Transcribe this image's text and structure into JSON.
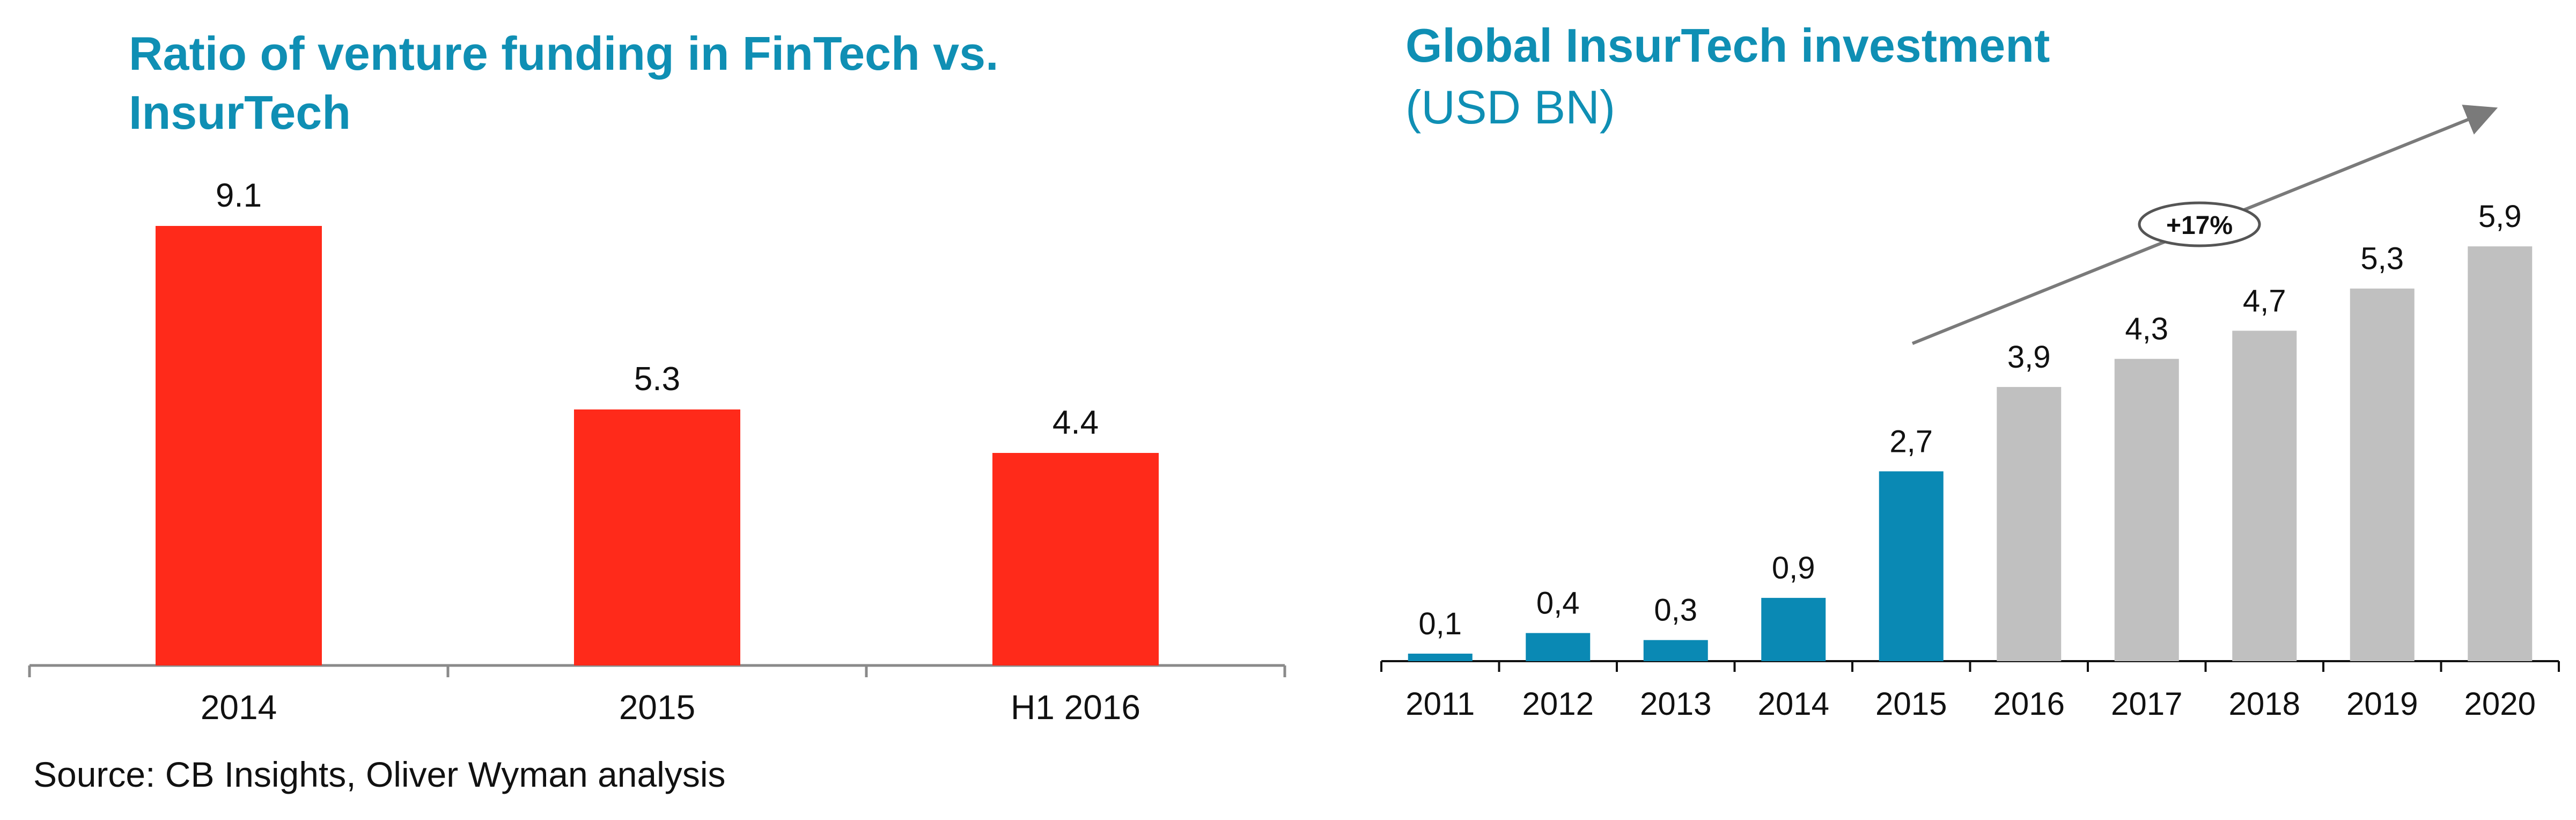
{
  "source_note": "Source: CB Insights, Oliver Wyman analysis",
  "chart_data": [
    {
      "type": "bar",
      "title": "Ratio of venture funding in FinTech vs. InsurTech",
      "categories": [
        "2014",
        "2015",
        "H1 2016"
      ],
      "values": [
        9.1,
        5.3,
        4.4
      ],
      "value_labels": [
        "9.1",
        "5.3",
        "4.4"
      ],
      "ylim": [
        0,
        10
      ],
      "bar_color": "#ff2a1a",
      "grid": false,
      "legend": "none"
    },
    {
      "type": "bar",
      "title": "Global InsurTech investment",
      "subtitle": "(USD BN)",
      "categories": [
        "2011",
        "2012",
        "2013",
        "2014",
        "2015",
        "2016",
        "2017",
        "2018",
        "2019",
        "2020"
      ],
      "values": [
        0.1,
        0.4,
        0.3,
        0.9,
        2.7,
        3.9,
        4.3,
        4.7,
        5.3,
        5.9
      ],
      "value_labels": [
        "0,1",
        "0,4",
        "0,3",
        "0,9",
        "2,7",
        "3,9",
        "4,3",
        "4,7",
        "5,3",
        "5,9"
      ],
      "bar_colors": [
        "#0a89b4",
        "#0a89b4",
        "#0a89b4",
        "#0a89b4",
        "#0a89b4",
        "#c0c0c0",
        "#c0c0c0",
        "#c0c0c0",
        "#c0c0c0",
        "#c0c0c0"
      ],
      "ylim": [
        0,
        6.5
      ],
      "annotation": "+17%",
      "grid": false,
      "legend": "none"
    }
  ]
}
